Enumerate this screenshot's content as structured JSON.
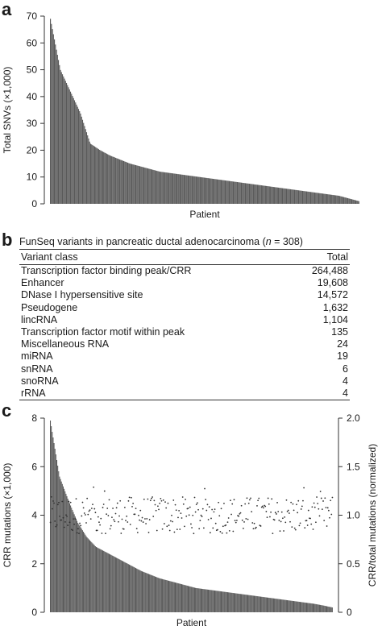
{
  "panel_a": {
    "letter": "a",
    "chart_data": {
      "type": "bar",
      "title": "",
      "xlabel": "Patient",
      "ylabel": "Total SNVs (×1,000)",
      "ylim": [
        0,
        70
      ],
      "yticks": [
        "0",
        "10",
        "20",
        "30",
        "40",
        "50",
        "60",
        "70"
      ],
      "sorted_descending": true,
      "n_bars": 308,
      "values": [
        69.0,
        50.0,
        42.0,
        34.0,
        22.5,
        20.0,
        18.0,
        16.5,
        15.0,
        14.0,
        13.0,
        12.0,
        11.5,
        11.0,
        10.5,
        10.0,
        9.5,
        9.0,
        8.5,
        8.0,
        7.5,
        7.0,
        6.5,
        6.0,
        5.5,
        5.0,
        4.5,
        4.0,
        3.5,
        3.0,
        2.0,
        1.0
      ],
      "grid": false
    }
  },
  "panel_b": {
    "letter": "b",
    "title_prefix": "FunSeq variants in pancreatic ductal adenocarcinoma (",
    "title_n": "n",
    "title_suffix": " = 308)",
    "columns": [
      "Variant class",
      "Total"
    ],
    "rows": [
      [
        "Transcription factor binding peak/CRR",
        "264,488"
      ],
      [
        "Enhancer",
        "19,608"
      ],
      [
        "DNase I hypersensitive site",
        "14,572"
      ],
      [
        "Pseudogene",
        "1,632"
      ],
      [
        "lincRNA",
        "1,104"
      ],
      [
        "Transcription factor motif within peak",
        "135"
      ],
      [
        "Miscellaneous RNA",
        "24"
      ],
      [
        "miRNA",
        "19"
      ],
      [
        "snRNA",
        "6"
      ],
      [
        "snoRNA",
        "4"
      ],
      [
        "rRNA",
        "4"
      ]
    ]
  },
  "panel_c": {
    "letter": "c",
    "chart_data": {
      "type": "bar",
      "title": "",
      "xlabel": "Patient",
      "ylabel": "CRR mutations (×1,000)",
      "y2label": "CRR/total mutations (normalized)",
      "ylim": [
        0,
        8
      ],
      "y2lim": [
        0,
        2.0
      ],
      "yticks": [
        "0",
        "2",
        "4",
        "6",
        "8"
      ],
      "y2ticks": [
        "0",
        "0.5",
        "1.0",
        "1.5",
        "2.0"
      ],
      "n_bars": 308,
      "bar_values": [
        7.9,
        5.6,
        4.6,
        3.7,
        3.1,
        2.7,
        2.5,
        2.3,
        2.1,
        1.9,
        1.7,
        1.55,
        1.4,
        1.3,
        1.2,
        1.1,
        1.0,
        0.95,
        0.9,
        0.85,
        0.8,
        0.75,
        0.7,
        0.65,
        0.6,
        0.55,
        0.5,
        0.45,
        0.4,
        0.35,
        0.28,
        0.2
      ],
      "scatter_series": {
        "axis": "right",
        "values_mean": 1.0,
        "range": [
          0.8,
          1.3
        ],
        "n_points": 308
      },
      "grid": false
    }
  },
  "colors": {
    "bars": "#5a5a5a",
    "axis": "#333333",
    "points": "#333333"
  }
}
